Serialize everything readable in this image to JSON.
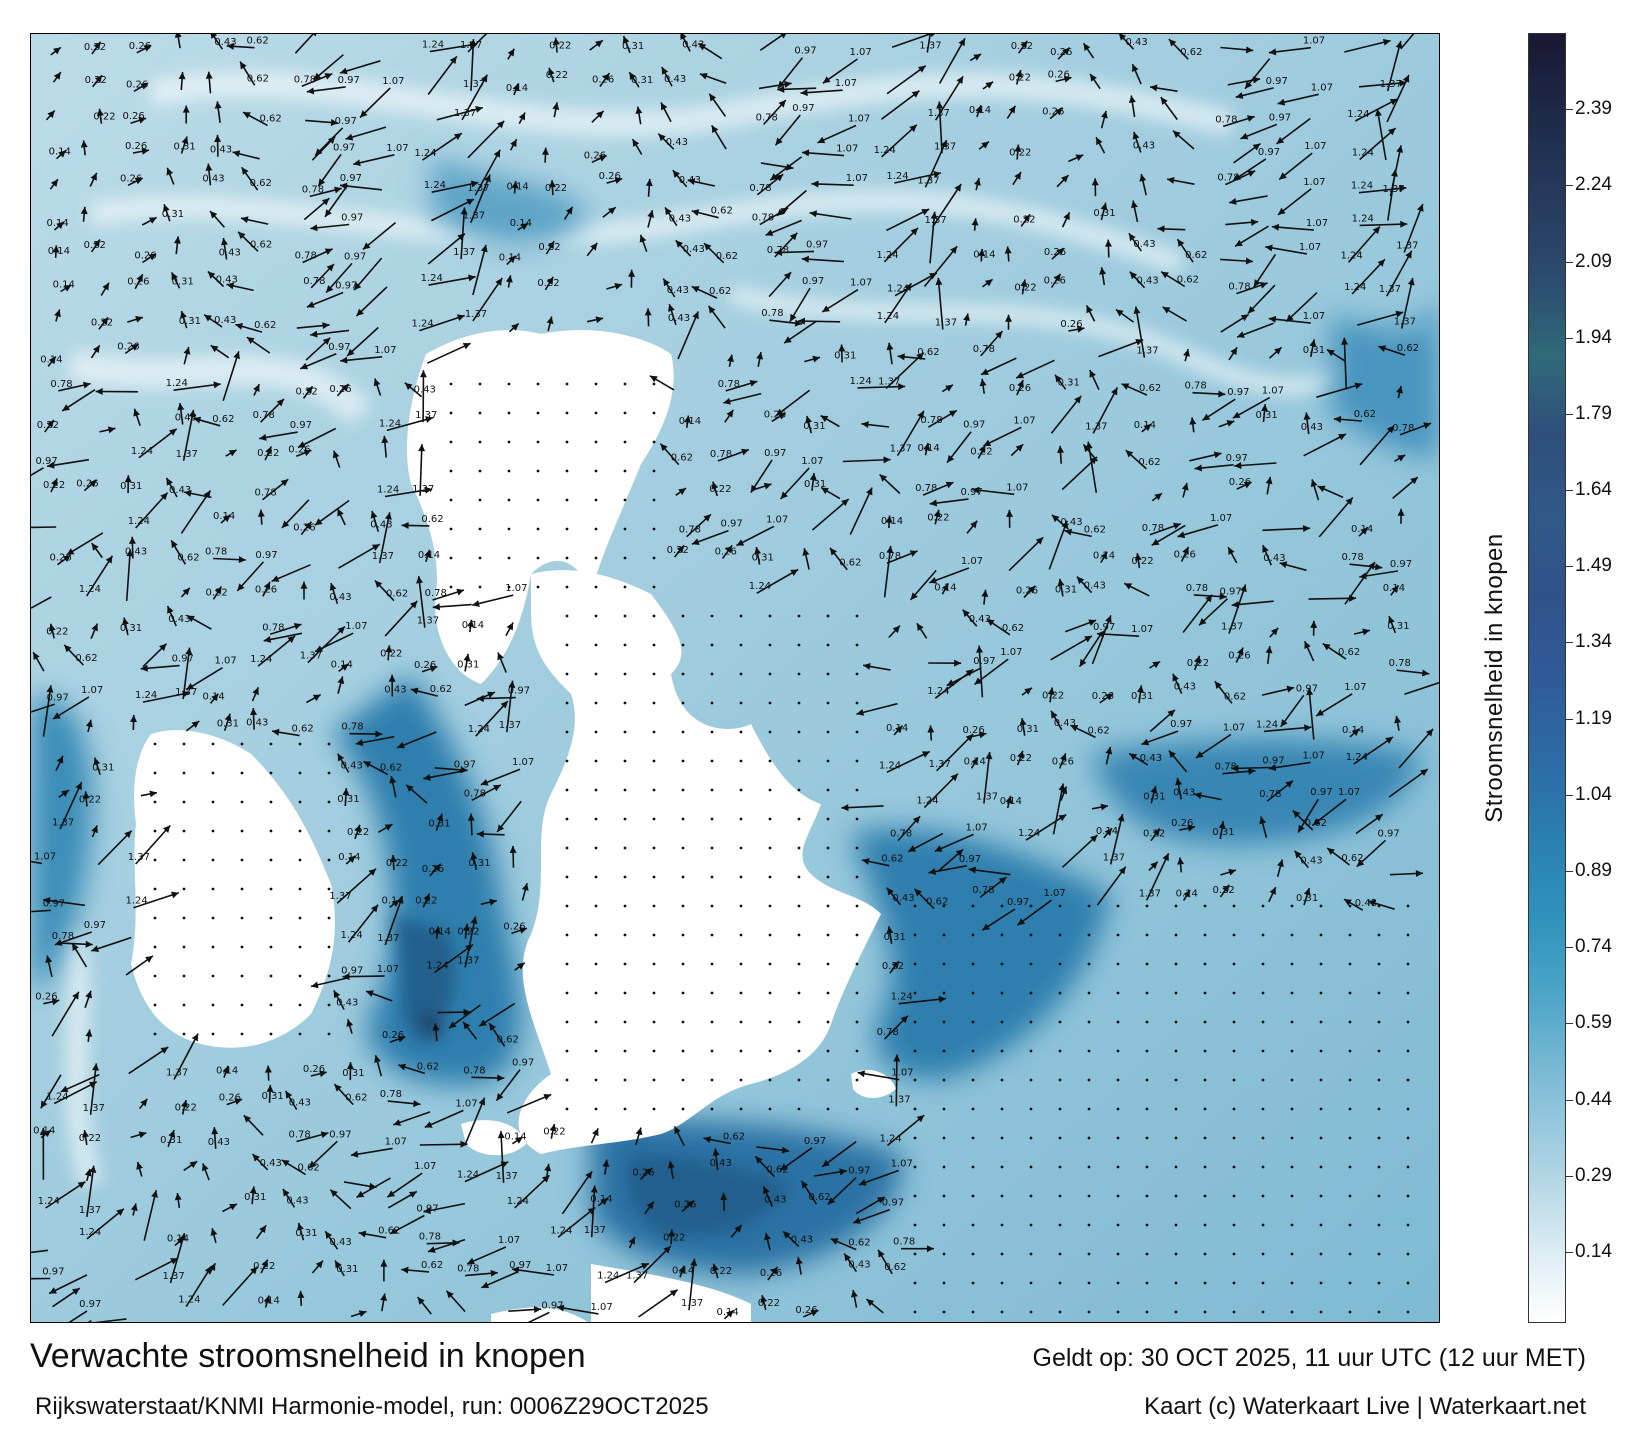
{
  "title": "Verwachte stroomsnelheid in knopen",
  "subtitle": "Rijkswaterstaat/KNMI Harmonie-model, run: 0006Z29OCT2025",
  "valid_time": "Geldt op: 30 OCT 2025, 11 uur UTC (12 uur MET)",
  "credit": "Kaart (c) Waterkaart Live | Waterkaart.net",
  "colorbar": {
    "label": "Stroomsnelheid in knopen",
    "ticks": [
      "2.39",
      "2.24",
      "2.09",
      "1.94",
      "1.79",
      "1.64",
      "1.49",
      "1.34",
      "1.19",
      "1.04",
      "0.89",
      "0.74",
      "0.59",
      "0.44",
      "0.29",
      "0.14"
    ],
    "colors": [
      "#ffffff",
      "#d6e9f1",
      "#a9d1e2",
      "#7fbcd6",
      "#4fa6c8",
      "#2f93bb",
      "#2a7fb1",
      "#2d6aa6",
      "#2f5b97",
      "#30528a",
      "#2f5a88",
      "#2f4e7c",
      "#2f6a78",
      "#2c4a6f",
      "#263a5c",
      "#1d2a48",
      "#1a1733"
    ]
  },
  "colors": {
    "sea_low": "#e2f0f6",
    "sea_mid": "#7fbad3",
    "sea_high": "#2f7faf",
    "sea_peak": "#245e8c",
    "land": "#ffffff",
    "arrow": "#111111"
  },
  "arrow_samples": [
    {
      "v": "0.14",
      "dir": 60
    },
    {
      "v": "0.22",
      "dir": 80
    },
    {
      "v": "0.26",
      "dir": 40
    },
    {
      "v": "0.31",
      "dir": 100
    },
    {
      "v": "0.43",
      "dir": 120
    },
    {
      "v": "0.62",
      "dir": 150
    },
    {
      "v": "0.78",
      "dir": 20
    },
    {
      "v": "0.97",
      "dir": 210
    },
    {
      "v": "1.07",
      "dir": 200
    },
    {
      "v": "1.24",
      "dir": 30
    },
    {
      "v": "1.37",
      "dir": 70
    }
  ]
}
